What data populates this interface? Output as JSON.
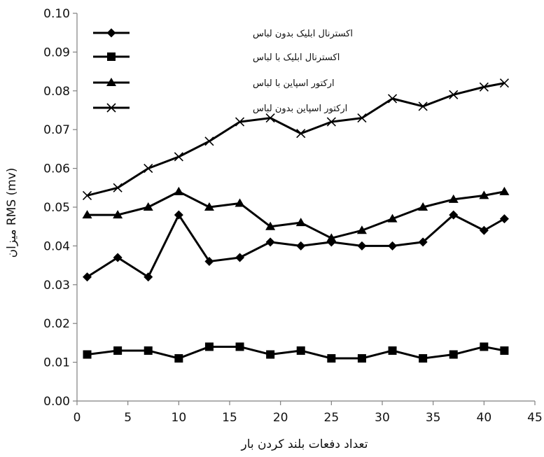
{
  "chart_data": {
    "type": "line",
    "title": "",
    "xlabel": "تعداد دفعات بلند کردن بار",
    "ylabel": "میزان RMS (mv)",
    "xlim": [
      0,
      45
    ],
    "ylim": [
      0,
      0.1
    ],
    "x_ticks": [
      "0",
      "5",
      "10",
      "15",
      "20",
      "25",
      "30",
      "35",
      "40",
      "45"
    ],
    "y_ticks": [
      "0.00",
      "0.01",
      "0.02",
      "0.03",
      "0.04",
      "0.05",
      "0.06",
      "0.07",
      "0.08",
      "0.09",
      "0.10"
    ],
    "grid": false,
    "legend_position": "top-left",
    "x": [
      1,
      4,
      7,
      10,
      13,
      16,
      19,
      22,
      25,
      28,
      31,
      34,
      37,
      40,
      42
    ],
    "series": [
      {
        "name": "اکسترنال ابلیک بدون لباس",
        "marker": "diamond",
        "values": [
          0.032,
          0.037,
          0.032,
          0.048,
          0.036,
          0.037,
          0.041,
          0.04,
          0.041,
          0.04,
          0.04,
          0.041,
          0.048,
          0.044,
          0.047
        ]
      },
      {
        "name": "اکسترنال ابلیک با لباس",
        "marker": "square",
        "values": [
          0.012,
          0.013,
          0.013,
          0.011,
          0.014,
          0.014,
          0.012,
          0.013,
          0.011,
          0.011,
          0.013,
          0.011,
          0.012,
          0.014,
          0.013
        ]
      },
      {
        "name": "ارکتور اسپاین با لباس",
        "marker": "triangle",
        "values": [
          0.048,
          0.048,
          0.05,
          0.054,
          0.05,
          0.051,
          0.045,
          0.046,
          0.042,
          0.044,
          0.047,
          0.05,
          0.052,
          0.053,
          0.054
        ]
      },
      {
        "name": "ارکتور اسپاین بدون لباس",
        "marker": "x",
        "values": [
          0.053,
          0.055,
          0.06,
          0.063,
          0.067,
          0.072,
          0.073,
          0.069,
          0.072,
          0.073,
          0.078,
          0.076,
          0.079,
          0.081,
          0.082
        ]
      }
    ],
    "colors": {
      "line": "#000000",
      "axis": "#808080"
    }
  }
}
